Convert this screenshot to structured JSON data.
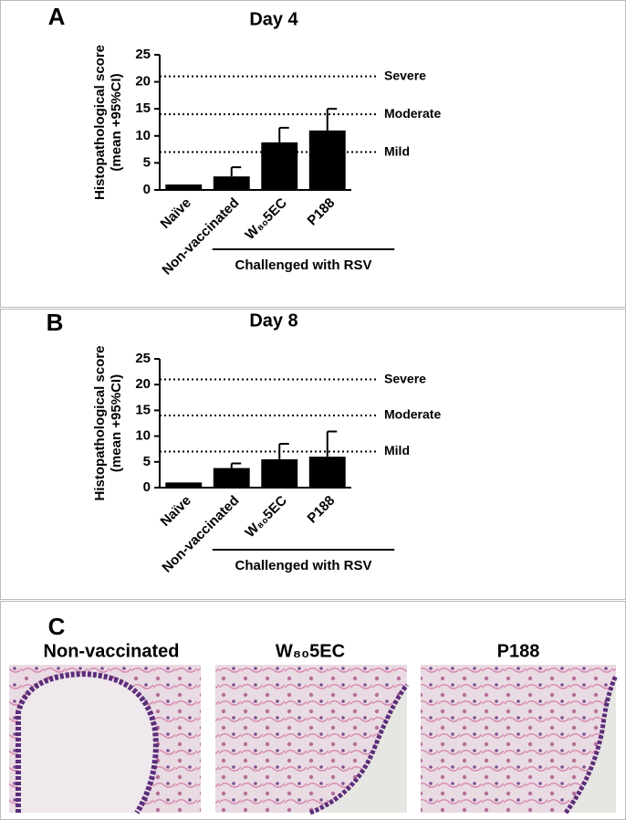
{
  "panels": [
    "A",
    "B",
    "C"
  ],
  "chart_data": [
    {
      "type": "bar",
      "title": "Day 4",
      "ylabel": [
        "Histopathological score",
        "(mean +95%CI)"
      ],
      "categories": [
        "Naïve",
        "Non-vaccinated",
        "W₈₀5EC",
        "P188"
      ],
      "values": [
        1,
        2.5,
        8.8,
        11
      ],
      "errors": [
        null,
        1.7,
        2.7,
        4
      ],
      "color": "#000000",
      "ylim": [
        0,
        25
      ],
      "yticks": [
        0,
        5,
        10,
        15,
        20,
        25
      ],
      "reference_lines": [
        {
          "value": 21,
          "label": "Severe"
        },
        {
          "value": 14,
          "label": "Moderate"
        },
        {
          "value": 7,
          "label": "Mild"
        }
      ],
      "group_label": "Challenged with RSV"
    },
    {
      "type": "bar",
      "title": "Day 8",
      "ylabel": [
        "Histopathological score",
        "(mean +95%CI)"
      ],
      "categories": [
        "Naïve",
        "Non-vaccinated",
        "W₈₀5EC",
        "P188"
      ],
      "values": [
        1,
        3.8,
        5.5,
        6
      ],
      "errors": [
        null,
        0.9,
        3,
        4.9
      ],
      "color": "#000000",
      "ylim": [
        0,
        25
      ],
      "yticks": [
        0,
        5,
        10,
        15,
        20,
        25
      ],
      "reference_lines": [
        {
          "value": 21,
          "label": "Severe"
        },
        {
          "value": 14,
          "label": "Moderate"
        },
        {
          "value": 7,
          "label": "Mild"
        }
      ],
      "group_label": "Challenged with RSV"
    }
  ],
  "micrographs": [
    {
      "label": "Non-vaccinated"
    },
    {
      "label": "W₈₀5EC"
    },
    {
      "label": "P188"
    }
  ]
}
